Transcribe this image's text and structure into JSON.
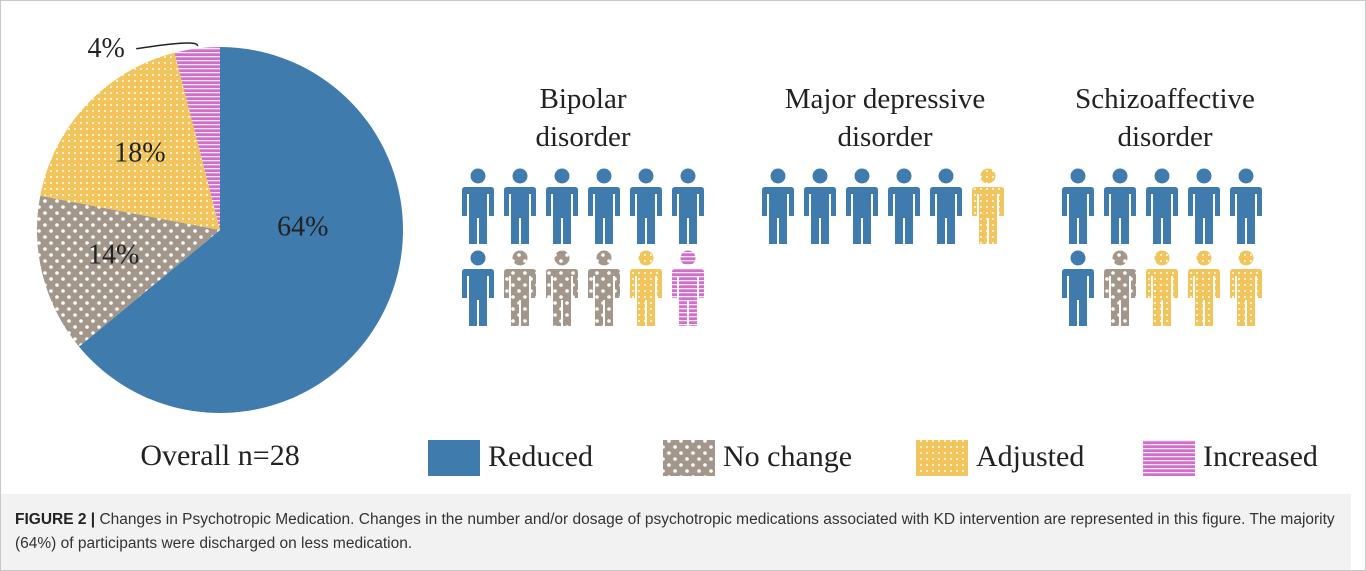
{
  "chart_data": [
    {
      "type": "pie",
      "categories": [
        "Reduced",
        "No change",
        "Adjusted",
        "Increased"
      ],
      "values": [
        64,
        14,
        18,
        4
      ],
      "value_labels": [
        "64%",
        "14%",
        "18%",
        "4%"
      ],
      "colors": [
        "#3f7bad",
        "#a2978a",
        "#f2c45c",
        "#cf6fc9"
      ],
      "patterns": [
        "solid",
        "dots",
        "fine-dots",
        "stripes"
      ],
      "annotation": "Overall n=28",
      "legend": "bottom"
    },
    {
      "type": "pictogram",
      "groups": [
        {
          "name": "Bipolar disorder",
          "values": [
            7,
            3,
            1,
            1
          ]
        },
        {
          "name": "Major depressive disorder",
          "values": [
            5,
            0,
            1,
            0
          ]
        },
        {
          "name": "Schizoaffective disorder",
          "values": [
            6,
            1,
            3,
            0
          ]
        }
      ]
    }
  ],
  "caption": {
    "label": "FIGURE 2 |",
    "text": "Changes in Psychotropic Medication. Changes in the number and/or dosage of psychotropic medications associated with KD intervention are represented in this figure. The majority (64%) of participants were discharged on less medication."
  }
}
